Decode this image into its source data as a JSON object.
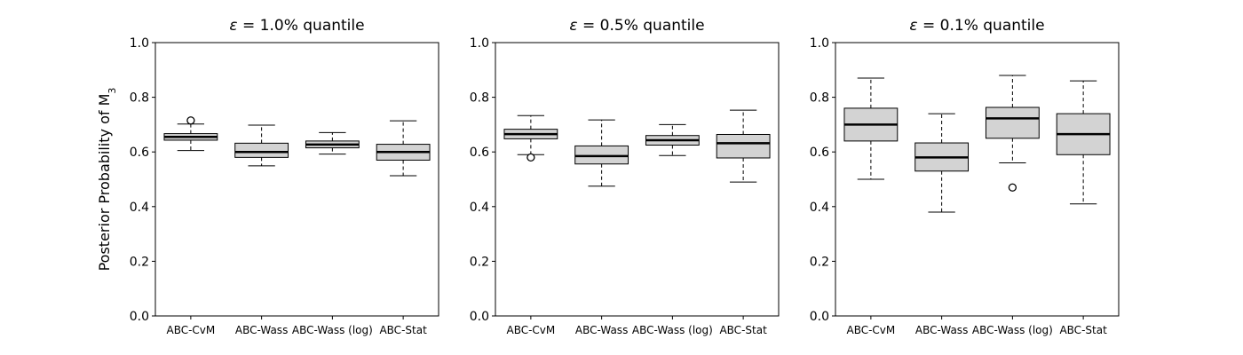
{
  "chart_data": {
    "type": "boxplot",
    "ylabel": "Posterior Probability of M",
    "ylabel_subscript": "3",
    "ylim": [
      0,
      1
    ],
    "yticks": [
      "0.0",
      "0.2",
      "0.4",
      "0.6",
      "0.8",
      "1.0"
    ],
    "categories": [
      "ABC-CvM",
      "ABC-Wass",
      "ABC-Wass (log)",
      "ABC-Stat"
    ],
    "panels": [
      {
        "title_symbol": "ε",
        "title_text": " = 1.0% quantile",
        "boxes": [
          {
            "category": "ABC-CvM",
            "whislo": 0.605,
            "q1": 0.643,
            "median": 0.655,
            "q3": 0.667,
            "whishi": 0.702,
            "outliers": [
              0.715
            ]
          },
          {
            "category": "ABC-Wass",
            "whislo": 0.549,
            "q1": 0.58,
            "median": 0.6,
            "q3": 0.632,
            "whishi": 0.698,
            "outliers": []
          },
          {
            "category": "ABC-Wass (log)",
            "whislo": 0.592,
            "q1": 0.615,
            "median": 0.627,
            "q3": 0.64,
            "whishi": 0.671,
            "outliers": []
          },
          {
            "category": "ABC-Stat",
            "whislo": 0.513,
            "q1": 0.57,
            "median": 0.6,
            "q3": 0.628,
            "whishi": 0.714,
            "outliers": []
          }
        ]
      },
      {
        "title_symbol": "ε",
        "title_text": " = 0.5% quantile",
        "boxes": [
          {
            "category": "ABC-CvM",
            "whislo": 0.59,
            "q1": 0.648,
            "median": 0.665,
            "q3": 0.683,
            "whishi": 0.733,
            "outliers": [
              0.58
            ]
          },
          {
            "category": "ABC-Wass",
            "whislo": 0.475,
            "q1": 0.556,
            "median": 0.585,
            "q3": 0.622,
            "whishi": 0.717,
            "outliers": []
          },
          {
            "category": "ABC-Wass (log)",
            "whislo": 0.587,
            "q1": 0.625,
            "median": 0.643,
            "q3": 0.66,
            "whishi": 0.7,
            "outliers": []
          },
          {
            "category": "ABC-Stat",
            "whislo": 0.49,
            "q1": 0.578,
            "median": 0.632,
            "q3": 0.664,
            "whishi": 0.753,
            "outliers": []
          }
        ]
      },
      {
        "title_symbol": "ε",
        "title_text": " = 0.1% quantile",
        "boxes": [
          {
            "category": "ABC-CvM",
            "whislo": 0.5,
            "q1": 0.64,
            "median": 0.7,
            "q3": 0.76,
            "whishi": 0.87,
            "outliers": []
          },
          {
            "category": "ABC-Wass",
            "whislo": 0.38,
            "q1": 0.53,
            "median": 0.58,
            "q3": 0.633,
            "whishi": 0.74,
            "outliers": []
          },
          {
            "category": "ABC-Wass (log)",
            "whislo": 0.56,
            "q1": 0.65,
            "median": 0.723,
            "q3": 0.763,
            "whishi": 0.88,
            "outliers": [
              0.47
            ]
          },
          {
            "category": "ABC-Stat",
            "whislo": 0.41,
            "q1": 0.59,
            "median": 0.665,
            "q3": 0.74,
            "whishi": 0.86,
            "outliers": []
          }
        ]
      }
    ]
  }
}
